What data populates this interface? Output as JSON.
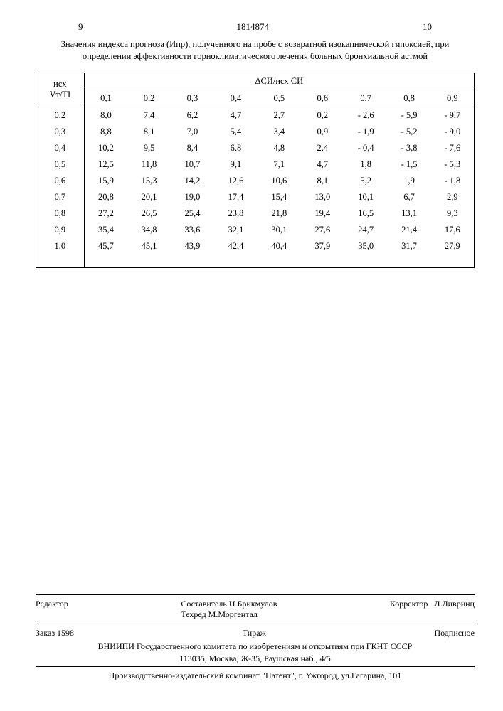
{
  "page": {
    "left_num": "9",
    "doc_num": "1814874",
    "right_num": "10",
    "caption": "Значения индекса прогноза (Ипр), полученного на пробе с возвратной изокапнической гипоксией, при определении эффективности горноклиматического лечения больных бронхиальной астмой"
  },
  "table": {
    "type": "table",
    "corner_label_top": "исх",
    "corner_label_bottom": "Vт/TI",
    "group_header": "ΔСИ/исх СИ",
    "col_headers": [
      "0,1",
      "0,2",
      "0,3",
      "0,4",
      "0,5",
      "0,6",
      "0,7",
      "0,8",
      "0,9"
    ],
    "row_headers": [
      "0,2",
      "0,3",
      "0,4",
      "0,5",
      "0,6",
      "0,7",
      "0,8",
      "0,9",
      "1,0"
    ],
    "rows": [
      [
        "8,0",
        "7,4",
        "6,2",
        "4,7",
        "2,7",
        "0,2",
        "- 2,6",
        "- 5,9",
        "- 9,7"
      ],
      [
        "8,8",
        "8,1",
        "7,0",
        "5,4",
        "3,4",
        "0,9",
        "- 1,9",
        "- 5,2",
        "- 9,0"
      ],
      [
        "10,2",
        "9,5",
        "8,4",
        "6,8",
        "4,8",
        "2,4",
        "- 0,4",
        "- 3,8",
        "- 7,6"
      ],
      [
        "12,5",
        "11,8",
        "10,7",
        "9,1",
        "7,1",
        "4,7",
        "1,8",
        "- 1,5",
        "- 5,3"
      ],
      [
        "15,9",
        "15,3",
        "14,2",
        "12,6",
        "10,6",
        "8,1",
        "5,2",
        "1,9",
        "- 1,8"
      ],
      [
        "20,8",
        "20,1",
        "19,0",
        "17,4",
        "15,4",
        "13,0",
        "10,1",
        "6,7",
        "2,9"
      ],
      [
        "27,2",
        "26,5",
        "25,4",
        "23,8",
        "21,8",
        "19,4",
        "16,5",
        "13,1",
        "9,3"
      ],
      [
        "35,4",
        "34,8",
        "33,6",
        "32,1",
        "30,1",
        "27,6",
        "24,7",
        "21,4",
        "17,6"
      ],
      [
        "45,7",
        "45,1",
        "43,9",
        "42,4",
        "40,4",
        "37,9",
        "35,0",
        "31,7",
        "27,9"
      ]
    ],
    "border_color": "#000000",
    "background_color": "#ffffff",
    "font_size_pt": 12
  },
  "footer": {
    "editor_label": "Редактор",
    "compiler": "Составитель Н.Брикмулов",
    "tech_editor": "Техред М.Моргентал",
    "corrector_label": "Корректор",
    "corrector_name": "Л.Ливринц",
    "order": "Заказ 1598",
    "tirazh": "Тираж",
    "podpisnoe": "Подписное",
    "org": "ВНИИПИ Государственного комитета по изобретениям и открытиям при ГКНТ СССР",
    "address": "113035, Москва, Ж-35, Раушская наб., 4/5",
    "production": "Производственно-издательский комбинат \"Патент\", г. Ужгород, ул.Гагарина, 101"
  }
}
